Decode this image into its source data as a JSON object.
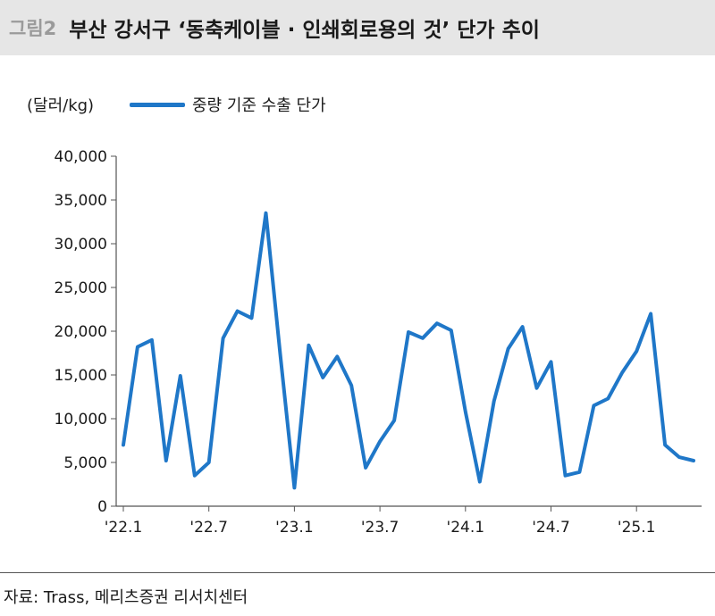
{
  "header": {
    "figure_label": "그림2",
    "title": "부산 강서구 ‘동축케이블 · 인쇄회로용의 것’ 단가 추이"
  },
  "unit_label": "(달러/kg)",
  "footer": {
    "source": "자료: Trass, 메리츠증권 리서치센터"
  },
  "colors": {
    "series": "#1f77c8",
    "axis": "#555555"
  },
  "chart_data": {
    "type": "line",
    "title": "부산 강서구 ‘동축케이블 · 인쇄회로용의 것’ 단가 추이",
    "ylabel": "(달러/kg)",
    "xlabel": "",
    "ylim": [
      0,
      40000
    ],
    "yticks": [
      0,
      5000,
      10000,
      15000,
      20000,
      25000,
      30000,
      35000,
      40000
    ],
    "ytick_labels": [
      "0",
      "5,000",
      "10,000",
      "15,000",
      "20,000",
      "25,000",
      "30,000",
      "35,000",
      "40,000"
    ],
    "xtick_labels": [
      "'22.1",
      "'22.7",
      "'23.1",
      "'23.7",
      "'24.1",
      "'24.7",
      "'25.1"
    ],
    "grid": false,
    "legend_position": "top-left",
    "x": [
      "2022-01",
      "2022-02",
      "2022-03",
      "2022-04",
      "2022-05",
      "2022-06",
      "2022-07",
      "2022-08",
      "2022-09",
      "2022-10",
      "2022-11",
      "2022-12",
      "2023-01",
      "2023-02",
      "2023-03",
      "2023-04",
      "2023-05",
      "2023-06",
      "2023-07",
      "2023-08",
      "2023-09",
      "2023-10",
      "2023-11",
      "2023-12",
      "2024-01",
      "2024-02",
      "2024-03",
      "2024-04",
      "2024-05",
      "2024-06",
      "2024-07",
      "2024-08",
      "2024-09",
      "2024-10",
      "2024-11",
      "2024-12",
      "2025-01",
      "2025-02",
      "2025-03",
      "2025-04",
      "2025-05"
    ],
    "series": [
      {
        "name": "중량 기준 수출 단가",
        "values": [
          7000,
          18200,
          19000,
          5200,
          14900,
          3500,
          5000,
          19200,
          22300,
          21500,
          33500,
          17500,
          2100,
          18400,
          14700,
          17100,
          13800,
          4400,
          7400,
          9800,
          19900,
          19200,
          20900,
          20100,
          10800,
          2800,
          12000,
          18000,
          20500,
          13500,
          16500,
          3500,
          3900,
          11500,
          12300,
          15300,
          17700,
          22000,
          7000,
          5600,
          5200
        ]
      }
    ]
  }
}
